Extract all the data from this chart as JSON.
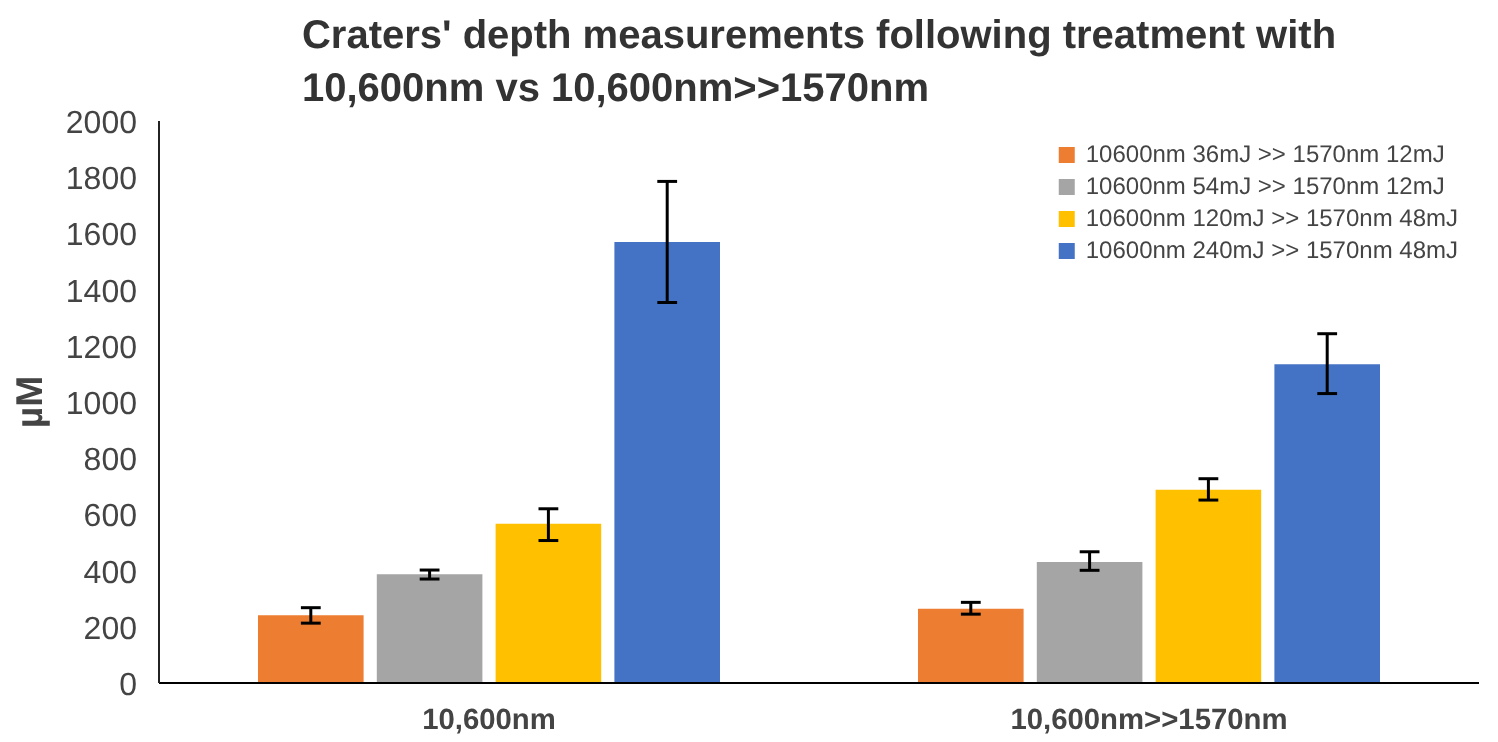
{
  "chart_data": {
    "type": "bar",
    "title": "Craters' depth measurements following treatment with 10,600nm vs 10,600nm>>1570nm",
    "ylabel": "µM",
    "categories": [
      "10,600nm",
      "10,600nm>>1570nm"
    ],
    "series": [
      {
        "name": "10600nm 36mJ >> 1570nm 12mJ",
        "color": "#ed7d31",
        "values": [
          241,
          264
        ],
        "errors": [
          [
            213,
            268
          ],
          [
            245,
            287
          ]
        ]
      },
      {
        "name": "10600nm 54mJ >> 1570nm 12mJ",
        "color": "#a5a5a5",
        "values": [
          387,
          431
        ],
        "errors": [
          [
            370,
            402
          ],
          [
            401,
            467
          ]
        ]
      },
      {
        "name": "10600nm 120mJ >> 1570nm 48mJ",
        "color": "#ffc000",
        "values": [
          567,
          688
        ],
        "errors": [
          [
            507,
            620
          ],
          [
            651,
            727
          ]
        ]
      },
      {
        "name": "10600nm 240mJ >> 1570nm 48mJ",
        "color": "#4472c4",
        "values": [
          1569,
          1134
        ],
        "errors": [
          [
            1354,
            1785
          ],
          [
            1030,
            1243
          ]
        ]
      }
    ],
    "ylim": [
      0,
      2000
    ],
    "yticks": [
      0,
      200,
      400,
      600,
      800,
      1000,
      1200,
      1400,
      1600,
      1800,
      2000
    ],
    "grid": false,
    "legend": "top right"
  }
}
